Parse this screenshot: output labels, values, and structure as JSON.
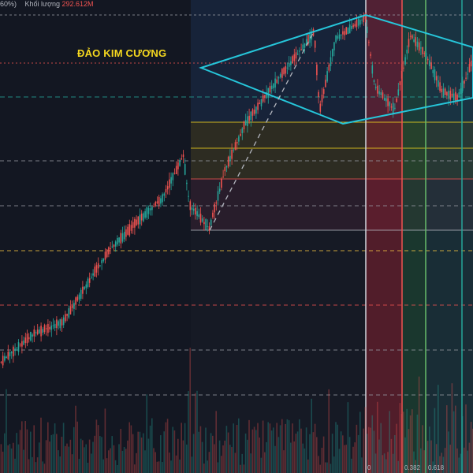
{
  "header": {
    "pct_fragment": "60%)",
    "volume_label": "Khối lượng",
    "volume_value": "292.612M"
  },
  "annotation": "ĐẢO KIM CƯƠNG",
  "fib_labels": [
    "0",
    "0.382",
    "0.618"
  ],
  "colors": {
    "background": "#161a25",
    "up": "#26a69a",
    "down": "#ef5350",
    "pattern": "#26c6da",
    "annotation": "#f5d81f"
  },
  "chart_data": {
    "type": "candlestick",
    "title": "",
    "pattern": "diamond top",
    "price_trend": "steady rise, sharp sell-off, recovery, then diamond-shaped topping range",
    "series": [
      {
        "name": "price",
        "kind": "candlestick"
      },
      {
        "name": "Khối lượng",
        "kind": "volume"
      }
    ],
    "fibonacci_levels": [
      0,
      0.382,
      0.618
    ],
    "grid": false
  }
}
